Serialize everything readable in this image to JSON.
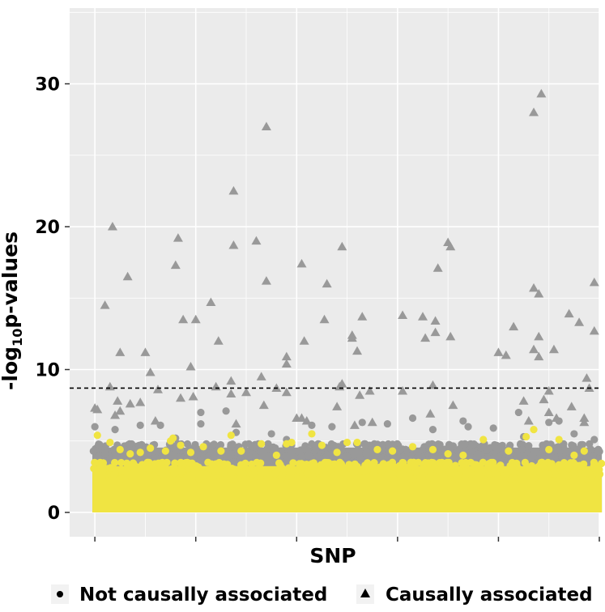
{
  "chart_data": {
    "type": "scatter",
    "title": "",
    "xlabel": "SNP",
    "ylabel_main": "-log",
    "ylabel_sub": "10",
    "ylabel_tail": "p-values",
    "xlim": [
      0,
      105
    ],
    "ylim": [
      -1.7,
      35.3
    ],
    "x_major_ticks": [
      5,
      25,
      45,
      65,
      85,
      105
    ],
    "x_minor_ticks": [
      15,
      35,
      55,
      75,
      95
    ],
    "y_ticks": [
      0,
      10,
      20,
      30
    ],
    "y_tick_labels": [
      "0",
      "10",
      "20",
      "30"
    ],
    "y_minor_ticks": [
      5,
      15,
      25,
      35
    ],
    "threshold": 8.7,
    "legend_position": "bottom",
    "colors": {
      "panel": "#ebebeb",
      "grid": "#ffffff",
      "not_causal": "#999999",
      "causal": "#999999",
      "highlight": "#f0e442",
      "threshold": "#000000"
    },
    "series": [
      {
        "name": "Not causally associated",
        "marker": "circle",
        "band": {
          "y_low": 0,
          "y_high": 4.8,
          "x_range": [
            4.5,
            105.5
          ]
        },
        "outliers": [
          [
            5,
            6.0
          ],
          [
            9,
            5.8
          ],
          [
            14,
            6.1
          ],
          [
            18,
            6.1
          ],
          [
            21,
            5.2
          ],
          [
            26,
            7.0
          ],
          [
            26,
            6.2
          ],
          [
            31,
            7.1
          ],
          [
            33,
            5.6
          ],
          [
            40,
            5.5
          ],
          [
            43,
            5.1
          ],
          [
            48,
            6.1
          ],
          [
            52,
            6.0
          ],
          [
            58,
            6.3
          ],
          [
            63,
            6.2
          ],
          [
            68,
            6.6
          ],
          [
            72,
            5.8
          ],
          [
            78,
            6.4
          ],
          [
            79,
            6.0
          ],
          [
            84,
            5.9
          ],
          [
            89,
            7.0
          ],
          [
            90,
            5.3
          ],
          [
            95,
            6.3
          ],
          [
            97,
            6.4
          ],
          [
            100,
            5.5
          ],
          [
            104,
            5.1
          ]
        ]
      },
      {
        "name": "Causally associated",
        "marker": "triangle",
        "points": [
          [
            5,
            7.3
          ],
          [
            5.5,
            7.2
          ],
          [
            7,
            14.5
          ],
          [
            8,
            8.8
          ],
          [
            8.5,
            20.0
          ],
          [
            9,
            6.8
          ],
          [
            9.5,
            7.8
          ],
          [
            10,
            11.2
          ],
          [
            10,
            7.1
          ],
          [
            11.5,
            16.5
          ],
          [
            12,
            7.6
          ],
          [
            14,
            7.7
          ],
          [
            15,
            11.2
          ],
          [
            16,
            9.8
          ],
          [
            17,
            6.4
          ],
          [
            17.5,
            8.6
          ],
          [
            21,
            17.3
          ],
          [
            21.5,
            19.2
          ],
          [
            22,
            8.0
          ],
          [
            22.5,
            13.5
          ],
          [
            24,
            10.2
          ],
          [
            24.5,
            8.1
          ],
          [
            25,
            13.5
          ],
          [
            28,
            14.7
          ],
          [
            29,
            8.8
          ],
          [
            29.5,
            12.0
          ],
          [
            32,
            9.2
          ],
          [
            32,
            8.3
          ],
          [
            32.5,
            18.7
          ],
          [
            32.5,
            22.5
          ],
          [
            33,
            6.2
          ],
          [
            35,
            8.4
          ],
          [
            37,
            19.0
          ],
          [
            38,
            9.5
          ],
          [
            38.5,
            7.5
          ],
          [
            39,
            16.2
          ],
          [
            39,
            27.0
          ],
          [
            41,
            8.7
          ],
          [
            43,
            10.9
          ],
          [
            43,
            10.4
          ],
          [
            43,
            8.4
          ],
          [
            45,
            6.6
          ],
          [
            46,
            6.6
          ],
          [
            46,
            17.4
          ],
          [
            46.5,
            12.0
          ],
          [
            47,
            6.4
          ],
          [
            50.5,
            13.5
          ],
          [
            51,
            16.0
          ],
          [
            53,
            7.4
          ],
          [
            53.5,
            8.8
          ],
          [
            54,
            18.6
          ],
          [
            54,
            9.0
          ],
          [
            56,
            12.4
          ],
          [
            56,
            12.2
          ],
          [
            56.5,
            6.1
          ],
          [
            57,
            11.3
          ],
          [
            57.5,
            8.2
          ],
          [
            58,
            13.7
          ],
          [
            59.5,
            8.5
          ],
          [
            60,
            6.3
          ],
          [
            66,
            8.5
          ],
          [
            66,
            13.8
          ],
          [
            70,
            13.7
          ],
          [
            70.5,
            12.2
          ],
          [
            71.5,
            6.9
          ],
          [
            72,
            8.9
          ],
          [
            72.5,
            13.4
          ],
          [
            72.5,
            12.6
          ],
          [
            73,
            17.1
          ],
          [
            75,
            18.9
          ],
          [
            75.5,
            18.6
          ],
          [
            75.5,
            12.3
          ],
          [
            76,
            7.5
          ],
          [
            85,
            11.2
          ],
          [
            86.5,
            11.0
          ],
          [
            88,
            13.0
          ],
          [
            90,
            7.8
          ],
          [
            91,
            6.4
          ],
          [
            92,
            28.0
          ],
          [
            92,
            11.4
          ],
          [
            92,
            15.7
          ],
          [
            93,
            15.3
          ],
          [
            93,
            12.3
          ],
          [
            93,
            10.9
          ],
          [
            93.5,
            29.3
          ],
          [
            94,
            7.9
          ],
          [
            95,
            7.0
          ],
          [
            95,
            8.5
          ],
          [
            96,
            11.4
          ],
          [
            96.5,
            6.6
          ],
          [
            99,
            13.9
          ],
          [
            99.5,
            7.4
          ],
          [
            101,
            13.3
          ],
          [
            102,
            6.6
          ],
          [
            102,
            6.3
          ],
          [
            102.5,
            9.4
          ],
          [
            103,
            8.7
          ],
          [
            104,
            12.7
          ],
          [
            104,
            16.1
          ]
        ]
      },
      {
        "name": "",
        "marker": "circle",
        "band": {
          "y_low": 0,
          "y_high": 3.5,
          "x_range": [
            4.5,
            105.5
          ]
        },
        "outliers": [
          [
            5.5,
            5.4
          ],
          [
            8,
            4.9
          ],
          [
            10,
            4.4
          ],
          [
            12,
            4.1
          ],
          [
            14,
            4.2
          ],
          [
            16,
            4.5
          ],
          [
            19,
            4.3
          ],
          [
            20,
            5.0
          ],
          [
            20.5,
            5.2
          ],
          [
            22,
            4.7
          ],
          [
            24,
            4.2
          ],
          [
            26.5,
            4.6
          ],
          [
            30,
            4.3
          ],
          [
            32,
            5.4
          ],
          [
            34,
            4.3
          ],
          [
            38,
            4.8
          ],
          [
            41,
            4.0
          ],
          [
            43,
            4.8
          ],
          [
            44,
            4.9
          ],
          [
            48,
            5.5
          ],
          [
            50,
            4.7
          ],
          [
            53,
            4.2
          ],
          [
            55,
            4.9
          ],
          [
            57,
            4.9
          ],
          [
            61,
            4.4
          ],
          [
            64,
            4.3
          ],
          [
            68,
            4.6
          ],
          [
            72,
            4.4
          ],
          [
            75,
            4.1
          ],
          [
            78,
            4.0
          ],
          [
            82,
            5.1
          ],
          [
            87,
            4.3
          ],
          [
            90.5,
            5.3
          ],
          [
            92,
            5.8
          ],
          [
            95,
            4.4
          ],
          [
            97,
            5.1
          ],
          [
            100,
            4.0
          ],
          [
            102,
            4.3
          ]
        ]
      }
    ]
  }
}
